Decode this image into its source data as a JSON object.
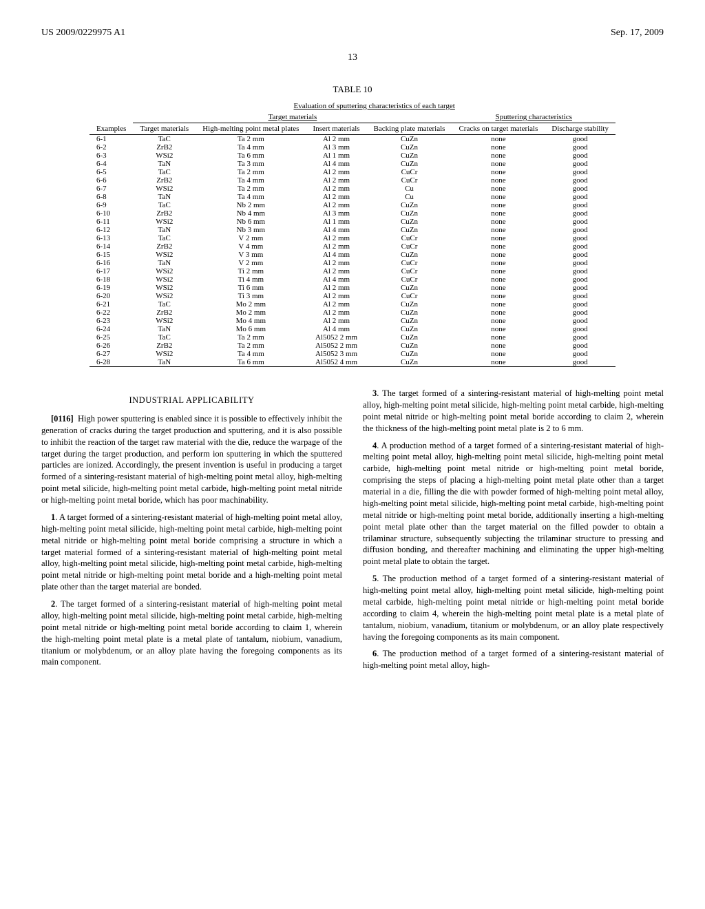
{
  "header": {
    "left": "US 2009/0229975 A1",
    "right": "Sep. 17, 2009"
  },
  "page_number": "13",
  "table": {
    "caption": "TABLE 10",
    "subtitle": "Evaluation of sputtering characteristics of each target",
    "group_left": "Target materials",
    "group_right": "Sputtering characteristics",
    "columns": [
      "Examples",
      "Target materials",
      "High-melting point metal plates",
      "Insert materials",
      "Backing plate materials",
      "Cracks on target materials",
      "Discharge stability"
    ],
    "rows": [
      [
        "6-1",
        "TaC",
        "Ta 2 mm",
        "Al 2 mm",
        "CuZn",
        "none",
        "good"
      ],
      [
        "6-2",
        "ZrB2",
        "Ta 4 mm",
        "Al 3 mm",
        "CuZn",
        "none",
        "good"
      ],
      [
        "6-3",
        "WSi2",
        "Ta 6 mm",
        "Al 1 mm",
        "CuZn",
        "none",
        "good"
      ],
      [
        "6-4",
        "TaN",
        "Ta 3 mm",
        "Al 4 mm",
        "CuZn",
        "none",
        "good"
      ],
      [
        "6-5",
        "TaC",
        "Ta 2 mm",
        "Al 2 mm",
        "CuCr",
        "none",
        "good"
      ],
      [
        "6-6",
        "ZrB2",
        "Ta 4 mm",
        "Al 2 mm",
        "CuCr",
        "none",
        "good"
      ],
      [
        "6-7",
        "WSi2",
        "Ta 2 mm",
        "Al 2 mm",
        "Cu",
        "none",
        "good"
      ],
      [
        "6-8",
        "TaN",
        "Ta 4 mm",
        "Al 2 mm",
        "Cu",
        "none",
        "good"
      ],
      [
        "6-9",
        "TaC",
        "Nb 2 mm",
        "Al 2 mm",
        "CuZn",
        "none",
        "good"
      ],
      [
        "6-10",
        "ZrB2",
        "Nb 4 mm",
        "Al 3 mm",
        "CuZn",
        "none",
        "good"
      ],
      [
        "6-11",
        "WSi2",
        "Nb 6 mm",
        "Al 1 mm",
        "CuZn",
        "none",
        "good"
      ],
      [
        "6-12",
        "TaN",
        "Nb 3 mm",
        "Al 4 mm",
        "CuZn",
        "none",
        "good"
      ],
      [
        "6-13",
        "TaC",
        "V 2 mm",
        "Al 2 mm",
        "CuCr",
        "none",
        "good"
      ],
      [
        "6-14",
        "ZrB2",
        "V 4 mm",
        "Al 2 mm",
        "CuCr",
        "none",
        "good"
      ],
      [
        "6-15",
        "WSi2",
        "V 3 mm",
        "Al 4 mm",
        "CuZn",
        "none",
        "good"
      ],
      [
        "6-16",
        "TaN",
        "V 2 mm",
        "Al 2 mm",
        "CuCr",
        "none",
        "good"
      ],
      [
        "6-17",
        "WSi2",
        "Ti 2 mm",
        "Al 2 mm",
        "CuCr",
        "none",
        "good"
      ],
      [
        "6-18",
        "WSi2",
        "Ti 4 mm",
        "Al 4 mm",
        "CuCr",
        "none",
        "good"
      ],
      [
        "6-19",
        "WSi2",
        "Ti 6 mm",
        "Al 2 mm",
        "CuZn",
        "none",
        "good"
      ],
      [
        "6-20",
        "WSi2",
        "Ti 3 mm",
        "Al 2 mm",
        "CuCr",
        "none",
        "good"
      ],
      [
        "6-21",
        "TaC",
        "Mo 2 mm",
        "Al 2 mm",
        "CuZn",
        "none",
        "good"
      ],
      [
        "6-22",
        "ZrB2",
        "Mo 2 mm",
        "Al 2 mm",
        "CuZn",
        "none",
        "good"
      ],
      [
        "6-23",
        "WSi2",
        "Mo 4 mm",
        "Al 2 mm",
        "CuZn",
        "none",
        "good"
      ],
      [
        "6-24",
        "TaN",
        "Mo 6 mm",
        "Al 4 mm",
        "CuZn",
        "none",
        "good"
      ],
      [
        "6-25",
        "TaC",
        "Ta 2 mm",
        "Al5052 2 mm",
        "CuZn",
        "none",
        "good"
      ],
      [
        "6-26",
        "ZrB2",
        "Ta 2 mm",
        "Al5052 2 mm",
        "CuZn",
        "none",
        "good"
      ],
      [
        "6-27",
        "WSi2",
        "Ta 4 mm",
        "Al5052 3 mm",
        "CuZn",
        "none",
        "good"
      ],
      [
        "6-28",
        "TaN",
        "Ta 6 mm",
        "Al5052 4 mm",
        "CuZn",
        "none",
        "good"
      ]
    ]
  },
  "body": {
    "section_head": "INDUSTRIAL APPLICABILITY",
    "para_num": "[0116]",
    "para_text": "High power sputtering is enabled since it is possible to effectively inhibit the generation of cracks during the target production and sputtering, and it is also possible to inhibit the reaction of the target raw material with the die, reduce the warpage of the target during the target production, and perform ion sputtering in which the sputtered particles are ionized. Accordingly, the present invention is useful in producing a target formed of a sintering-resistant material of high-melting point metal alloy, high-melting point metal silicide, high-melting point metal carbide, high-melting point metal nitride or high-melting point metal boride, which has poor machinability.",
    "claims": [
      {
        "n": "1",
        "t": ". A target formed of a sintering-resistant material of high-melting point metal alloy, high-melting point metal silicide, high-melting point metal carbide, high-melting point metal nitride or high-melting point metal boride comprising a structure in which a target material formed of a sintering-resistant material of high-melting point metal alloy, high-melting point metal silicide, high-melting point metal carbide, high-melting point metal nitride or high-melting point metal boride and a high-melting point metal plate other than the target material are bonded."
      },
      {
        "n": "2",
        "t": ". The target formed of a sintering-resistant material of high-melting point metal alloy, high-melting point metal silicide, high-melting point metal carbide, high-melting point metal nitride or high-melting point metal boride according to claim 1, wherein the high-melting point metal plate is a metal plate of tantalum, niobium, vanadium, titanium or molybdenum, or an alloy plate having the foregoing components as its main component."
      },
      {
        "n": "3",
        "t": ". The target formed of a sintering-resistant material of high-melting point metal alloy, high-melting point metal silicide, high-melting point metal carbide, high-melting point metal nitride or high-melting point metal boride according to claim 2, wherein the thickness of the high-melting point metal plate is 2 to 6 mm."
      },
      {
        "n": "4",
        "t": ". A production method of a target formed of a sintering-resistant material of high-melting point metal alloy, high-melting point metal silicide, high-melting point metal carbide, high-melting point metal nitride or high-melting point metal boride, comprising the steps of placing a high-melting point metal plate other than a target material in a die, filling the die with powder formed of high-melting point metal alloy, high-melting point metal silicide, high-melting point metal carbide, high-melting point metal nitride or high-melting point metal boride, additionally inserting a high-melting point metal plate other than the target material on the filled powder to obtain a trilaminar structure, subsequently subjecting the trilaminar structure to pressing and diffusion bonding, and thereafter machining and eliminating the upper high-melting point metal plate to obtain the target."
      },
      {
        "n": "5",
        "t": ". The production method of a target formed of a sintering-resistant material of high-melting point metal alloy, high-melting point metal silicide, high-melting point metal carbide, high-melting point metal nitride or high-melting point metal boride according to claim 4, wherein the high-melting point metal plate is a metal plate of tantalum, niobium, vanadium, titanium or molybdenum, or an alloy plate respectively having the foregoing components as its main component."
      },
      {
        "n": "6",
        "t": ". The production method of a target formed of a sintering-resistant material of high-melting point metal alloy, high-"
      }
    ]
  }
}
